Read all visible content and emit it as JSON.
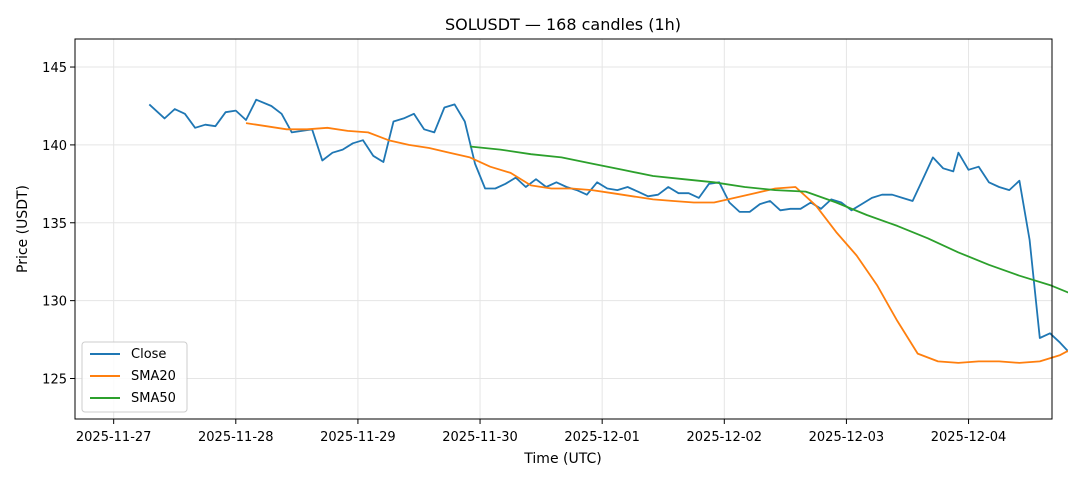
{
  "chart_data": {
    "type": "line",
    "title": "SOLUSDT — 168 candles (1h)",
    "xlabel": "Time (UTC)",
    "ylabel": "Price (USDT)",
    "x_ticks": [
      "2025-11-27",
      "2025-11-28",
      "2025-11-29",
      "2025-11-30",
      "2025-12-01",
      "2025-12-02",
      "2025-12-03",
      "2025-12-04"
    ],
    "y_ticks": [
      125,
      130,
      135,
      140,
      145
    ],
    "xlim": [
      "2025-11-26T16:24",
      "2025-12-04T16:24"
    ],
    "ylim": [
      122.4,
      146.8
    ],
    "grid": true,
    "legend_position": "lower-left",
    "series": [
      {
        "name": "Close",
        "color": "#1f77b4",
        "points": [
          [
            "2025-11-27T07:00",
            142.6
          ],
          [
            "2025-11-27T10:00",
            141.7
          ],
          [
            "2025-11-27T12:00",
            142.3
          ],
          [
            "2025-11-27T14:00",
            142.0
          ],
          [
            "2025-11-27T16:00",
            141.1
          ],
          [
            "2025-11-27T18:00",
            141.3
          ],
          [
            "2025-11-27T20:00",
            141.2
          ],
          [
            "2025-11-27T22:00",
            142.1
          ],
          [
            "2025-11-28T00:00",
            142.2
          ],
          [
            "2025-11-28T02:00",
            141.6
          ],
          [
            "2025-11-28T04:00",
            142.9
          ],
          [
            "2025-11-28T07:00",
            142.5
          ],
          [
            "2025-11-28T09:00",
            142.0
          ],
          [
            "2025-11-28T11:00",
            140.8
          ],
          [
            "2025-11-28T13:00",
            140.9
          ],
          [
            "2025-11-28T15:00",
            141.0
          ],
          [
            "2025-11-28T17:00",
            139.0
          ],
          [
            "2025-11-28T19:00",
            139.5
          ],
          [
            "2025-11-28T21:00",
            139.7
          ],
          [
            "2025-11-28T23:00",
            140.1
          ],
          [
            "2025-11-29T01:00",
            140.3
          ],
          [
            "2025-11-29T03:00",
            139.3
          ],
          [
            "2025-11-29T05:00",
            138.9
          ],
          [
            "2025-11-29T07:00",
            141.5
          ],
          [
            "2025-11-29T09:00",
            141.7
          ],
          [
            "2025-11-29T11:00",
            142.0
          ],
          [
            "2025-11-29T13:00",
            141.0
          ],
          [
            "2025-11-29T15:00",
            140.8
          ],
          [
            "2025-11-29T17:00",
            142.4
          ],
          [
            "2025-11-29T19:00",
            142.6
          ],
          [
            "2025-11-29T21:00",
            141.5
          ],
          [
            "2025-11-29T23:00",
            138.8
          ],
          [
            "2025-11-30T01:00",
            137.2
          ],
          [
            "2025-11-30T03:00",
            137.2
          ],
          [
            "2025-11-30T05:00",
            137.5
          ],
          [
            "2025-11-30T07:00",
            137.9
          ],
          [
            "2025-11-30T09:00",
            137.3
          ],
          [
            "2025-11-30T11:00",
            137.8
          ],
          [
            "2025-11-30T13:00",
            137.3
          ],
          [
            "2025-11-30T15:00",
            137.6
          ],
          [
            "2025-11-30T17:00",
            137.3
          ],
          [
            "2025-11-30T19:00",
            137.1
          ],
          [
            "2025-11-30T21:00",
            136.8
          ],
          [
            "2025-11-30T23:00",
            137.6
          ],
          [
            "2025-12-01T01:00",
            137.2
          ],
          [
            "2025-12-01T03:00",
            137.1
          ],
          [
            "2025-12-01T05:00",
            137.3
          ],
          [
            "2025-12-01T07:00",
            137.0
          ],
          [
            "2025-12-01T09:00",
            136.7
          ],
          [
            "2025-12-01T11:00",
            136.8
          ],
          [
            "2025-12-01T13:00",
            137.3
          ],
          [
            "2025-12-01T15:00",
            136.9
          ],
          [
            "2025-12-01T17:00",
            136.9
          ],
          [
            "2025-12-01T19:00",
            136.6
          ],
          [
            "2025-12-01T21:00",
            137.5
          ],
          [
            "2025-12-01T23:00",
            137.6
          ],
          [
            "2025-12-02T01:00",
            136.3
          ],
          [
            "2025-12-02T03:00",
            135.7
          ],
          [
            "2025-12-02T05:00",
            135.7
          ],
          [
            "2025-12-02T07:00",
            136.2
          ],
          [
            "2025-12-02T09:00",
            136.4
          ],
          [
            "2025-12-02T11:00",
            135.8
          ],
          [
            "2025-12-02T13:00",
            135.9
          ],
          [
            "2025-12-02T15:00",
            135.9
          ],
          [
            "2025-12-02T17:00",
            136.3
          ],
          [
            "2025-12-02T19:00",
            135.9
          ],
          [
            "2025-12-02T21:00",
            136.5
          ],
          [
            "2025-12-02T23:00",
            136.3
          ],
          [
            "2025-12-03T01:00",
            135.8
          ],
          [
            "2025-12-03T03:00",
            136.2
          ],
          [
            "2025-12-03T05:00",
            136.6
          ],
          [
            "2025-12-03T07:00",
            136.8
          ],
          [
            "2025-12-03T09:00",
            136.8
          ],
          [
            "2025-12-03T11:00",
            136.6
          ],
          [
            "2025-12-03T13:00",
            136.4
          ],
          [
            "2025-12-03T15:00",
            137.8
          ],
          [
            "2025-12-03T17:00",
            139.2
          ],
          [
            "2025-12-03T19:00",
            138.5
          ],
          [
            "2025-12-03T21:00",
            138.3
          ],
          [
            "2025-12-03T22:00",
            139.5
          ],
          [
            "2025-12-04T00:00",
            138.4
          ],
          [
            "2025-12-04T02:00",
            138.6
          ],
          [
            "2025-12-04T04:00",
            137.6
          ],
          [
            "2025-12-04T06:00",
            137.3
          ],
          [
            "2025-12-04T08:00",
            137.1
          ],
          [
            "2025-12-04T10:00",
            137.7
          ],
          [
            "2025-12-04T12:00",
            133.9
          ],
          [
            "2025-12-04T14:00",
            127.6
          ],
          [
            "2025-12-04T16:00",
            127.9
          ],
          [
            "2025-12-04T18:00",
            127.3
          ],
          [
            "2025-12-04T20:00",
            126.6
          ],
          [
            "2025-12-04T22:00",
            126.3
          ]
        ]
      },
      {
        "name": "SMA20",
        "color": "#ff7f0e",
        "points": [
          [
            "2025-11-28T02:00",
            141.4
          ],
          [
            "2025-11-28T06:00",
            141.2
          ],
          [
            "2025-11-28T10:00",
            141.0
          ],
          [
            "2025-11-28T14:00",
            141.0
          ],
          [
            "2025-11-28T18:00",
            141.1
          ],
          [
            "2025-11-28T22:00",
            140.9
          ],
          [
            "2025-11-29T02:00",
            140.8
          ],
          [
            "2025-11-29T06:00",
            140.3
          ],
          [
            "2025-11-29T10:00",
            140.0
          ],
          [
            "2025-11-29T14:00",
            139.8
          ],
          [
            "2025-11-29T18:00",
            139.5
          ],
          [
            "2025-11-29T22:00",
            139.2
          ],
          [
            "2025-11-30T02:00",
            138.6
          ],
          [
            "2025-11-30T06:00",
            138.2
          ],
          [
            "2025-11-30T10:00",
            137.4
          ],
          [
            "2025-11-30T14:00",
            137.2
          ],
          [
            "2025-11-30T18:00",
            137.2
          ],
          [
            "2025-11-30T22:00",
            137.1
          ],
          [
            "2025-12-01T02:00",
            136.9
          ],
          [
            "2025-12-01T06:00",
            136.7
          ],
          [
            "2025-12-01T10:00",
            136.5
          ],
          [
            "2025-12-01T14:00",
            136.4
          ],
          [
            "2025-12-01T18:00",
            136.3
          ],
          [
            "2025-12-01T22:00",
            136.3
          ],
          [
            "2025-12-02T02:00",
            136.6
          ],
          [
            "2025-12-02T06:00",
            136.9
          ],
          [
            "2025-12-02T10:00",
            137.2
          ],
          [
            "2025-12-02T14:00",
            137.3
          ],
          [
            "2025-12-02T18:00",
            136.1
          ],
          [
            "2025-12-02T22:00",
            134.4
          ],
          [
            "2025-12-03T02:00",
            132.9
          ],
          [
            "2025-12-03T06:00",
            131.0
          ],
          [
            "2025-12-03T10:00",
            128.7
          ],
          [
            "2025-12-03T14:00",
            126.6
          ],
          [
            "2025-12-03T18:00",
            126.1
          ],
          [
            "2025-12-03T22:00",
            126.0
          ],
          [
            "2025-12-04T02:00",
            126.1
          ],
          [
            "2025-12-04T06:00",
            126.1
          ],
          [
            "2025-12-04T10:00",
            126.0
          ],
          [
            "2025-12-04T14:00",
            126.1
          ],
          [
            "2025-12-04T18:00",
            126.5
          ],
          [
            "2025-12-04T22:00",
            127.2
          ]
        ]
      },
      {
        "name": "SMA50",
        "color": "#2ca02c",
        "points": [
          [
            "2025-11-29T22:00",
            139.9
          ],
          [
            "2025-11-30T04:00",
            139.7
          ],
          [
            "2025-11-30T10:00",
            139.4
          ],
          [
            "2025-11-30T16:00",
            139.2
          ],
          [
            "2025-11-30T22:00",
            138.8
          ],
          [
            "2025-12-01T04:00",
            138.4
          ],
          [
            "2025-12-01T10:00",
            138.0
          ],
          [
            "2025-12-01T16:00",
            137.8
          ],
          [
            "2025-12-01T22:00",
            137.6
          ],
          [
            "2025-12-02T04:00",
            137.3
          ],
          [
            "2025-12-02T10:00",
            137.1
          ],
          [
            "2025-12-02T16:00",
            137.0
          ],
          [
            "2025-12-02T22:00",
            136.3
          ],
          [
            "2025-12-03T04:00",
            135.5
          ],
          [
            "2025-12-03T10:00",
            134.8
          ],
          [
            "2025-12-03T16:00",
            134.0
          ],
          [
            "2025-12-03T22:00",
            133.1
          ],
          [
            "2025-12-04T04:00",
            132.3
          ],
          [
            "2025-12-04T10:00",
            131.6
          ],
          [
            "2025-12-04T16:00",
            131.0
          ],
          [
            "2025-12-04T22:00",
            130.2
          ]
        ]
      }
    ]
  },
  "legend": {
    "items": [
      {
        "label": "Close",
        "color": "#1f77b4"
      },
      {
        "label": "SMA20",
        "color": "#ff7f0e"
      },
      {
        "label": "SMA50",
        "color": "#2ca02c"
      }
    ]
  }
}
